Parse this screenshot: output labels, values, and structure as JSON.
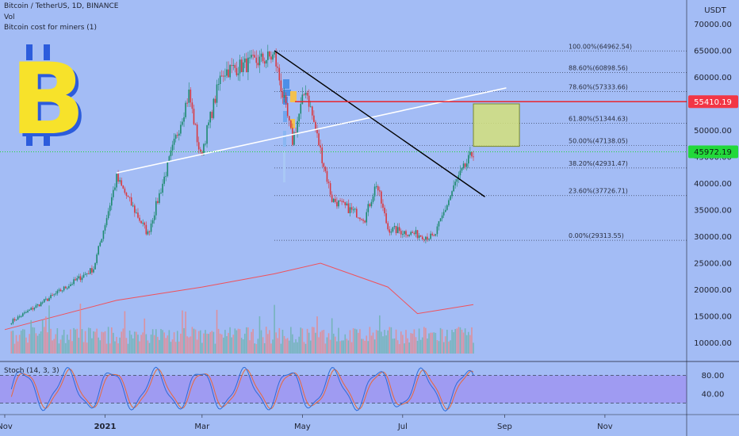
{
  "legend": {
    "symbol": "Bitcoin / TetherUS, 1D, BINANCE",
    "volume": "Vol",
    "indicator": "Bitcoin cost for miners  (1)"
  },
  "colors": {
    "background": "#a3bcf5",
    "up_candle": "#1d8a6f",
    "down_candle": "#d9383f",
    "axis_text": "#1e2230",
    "fib_text": "#2a2f40",
    "trendline": "#000000",
    "support_line": "#ffffff",
    "level_line": "#e8262e",
    "price_badge_red": "#f23645",
    "price_badge_green": "#22d93a",
    "target_box": "#d4e07a",
    "stoch_band": "#9f97f2",
    "stoch_k": "#2c6cd9",
    "stoch_d": "#e8683a",
    "miner_cost_line": "#f0515b",
    "logo_yellow": "#f7e22a",
    "logo_blue": "#2c5cdc"
  },
  "logo": {
    "glyph": "B",
    "icon": "bitcoin-logo-icon"
  },
  "price_axis": {
    "currency": "USDT",
    "ticks": [
      "70000.00",
      "65000.00",
      "60000.00",
      "55000.00",
      "50000.00",
      "45000.00",
      "40000.00",
      "35000.00",
      "30000.00",
      "25000.00",
      "20000.00",
      "15000.00",
      "10000.00"
    ]
  },
  "stoch_axis": {
    "ticks": [
      "80.00",
      "40.00"
    ]
  },
  "stoch_label": "Stoch (14, 3, 3)",
  "time_axis": {
    "labels": [
      "Nov",
      "2021",
      "Mar",
      "May",
      "Jul",
      "Sep",
      "Nov"
    ]
  },
  "badges": {
    "level": "55410.19",
    "last": "45972.19"
  },
  "chart_data": {
    "type": "candlestick",
    "title": "Bitcoin / TetherUS, 1D, BINANCE",
    "y_unit": "USDT",
    "price_points": [
      {
        "date": "2020-11-05",
        "price": 14000
      },
      {
        "date": "2020-12-01",
        "price": 19000
      },
      {
        "date": "2020-12-25",
        "price": 24000
      },
      {
        "date": "2021-01-08",
        "price": 41000
      },
      {
        "date": "2021-01-27",
        "price": 30500
      },
      {
        "date": "2021-02-21",
        "price": 57000
      },
      {
        "date": "2021-02-28",
        "price": 45000
      },
      {
        "date": "2021-03-13",
        "price": 61000
      },
      {
        "date": "2021-04-14",
        "price": 64000
      },
      {
        "date": "2021-04-25",
        "price": 48000
      },
      {
        "date": "2021-05-03",
        "price": 58000
      },
      {
        "date": "2021-05-19",
        "price": 37000
      },
      {
        "date": "2021-06-08",
        "price": 33500
      },
      {
        "date": "2021-06-15",
        "price": 40000
      },
      {
        "date": "2021-06-22",
        "price": 31500
      },
      {
        "date": "2021-07-20",
        "price": 29800
      },
      {
        "date": "2021-08-02",
        "price": 40000
      },
      {
        "date": "2021-08-13",
        "price": 45972
      }
    ],
    "fib_levels": [
      {
        "label": "100.00%(64962.54)",
        "price": 64962.54
      },
      {
        "label": "88.60%(60898.56)",
        "price": 60898.56
      },
      {
        "label": "78.60%(57333.66)",
        "price": 57333.66
      },
      {
        "label": "61.80%(51344.63)",
        "price": 51344.63
      },
      {
        "label": "50.00%(47138.05)",
        "price": 47138.05
      },
      {
        "label": "38.20%(42931.47)",
        "price": 42931.47
      },
      {
        "label": "23.60%(37726.71)",
        "price": 37726.71
      },
      {
        "label": "0.00%(29313.55)",
        "price": 29313.55
      }
    ],
    "resistance_level": 55410.19,
    "last_price": 45972.19,
    "target_zone": {
      "from_date": "2021-08-13",
      "to_date": "2021-09-10",
      "low": 47000,
      "high": 55000
    },
    "descending_trendline": [
      {
        "date": "2021-04-14",
        "price": 65000
      },
      {
        "date": "2021-08-20",
        "price": 37500
      }
    ],
    "rising_trendline": [
      {
        "date": "2021-01-08",
        "price": 42000
      },
      {
        "date": "2021-09-02",
        "price": 58000
      }
    ],
    "miner_cost": [
      {
        "date": "2020-11-01",
        "price": 12500
      },
      {
        "date": "2021-01-08",
        "price": 18000
      },
      {
        "date": "2021-03-01",
        "price": 20500
      },
      {
        "date": "2021-04-14",
        "price": 23000
      },
      {
        "date": "2021-05-12",
        "price": 25000
      },
      {
        "date": "2021-06-22",
        "price": 20500
      },
      {
        "date": "2021-07-10",
        "price": 15500
      },
      {
        "date": "2021-08-13",
        "price": 17200
      }
    ],
    "stoch_band": [
      20,
      80
    ],
    "ylim": [
      8000,
      73000
    ],
    "grid": false
  }
}
